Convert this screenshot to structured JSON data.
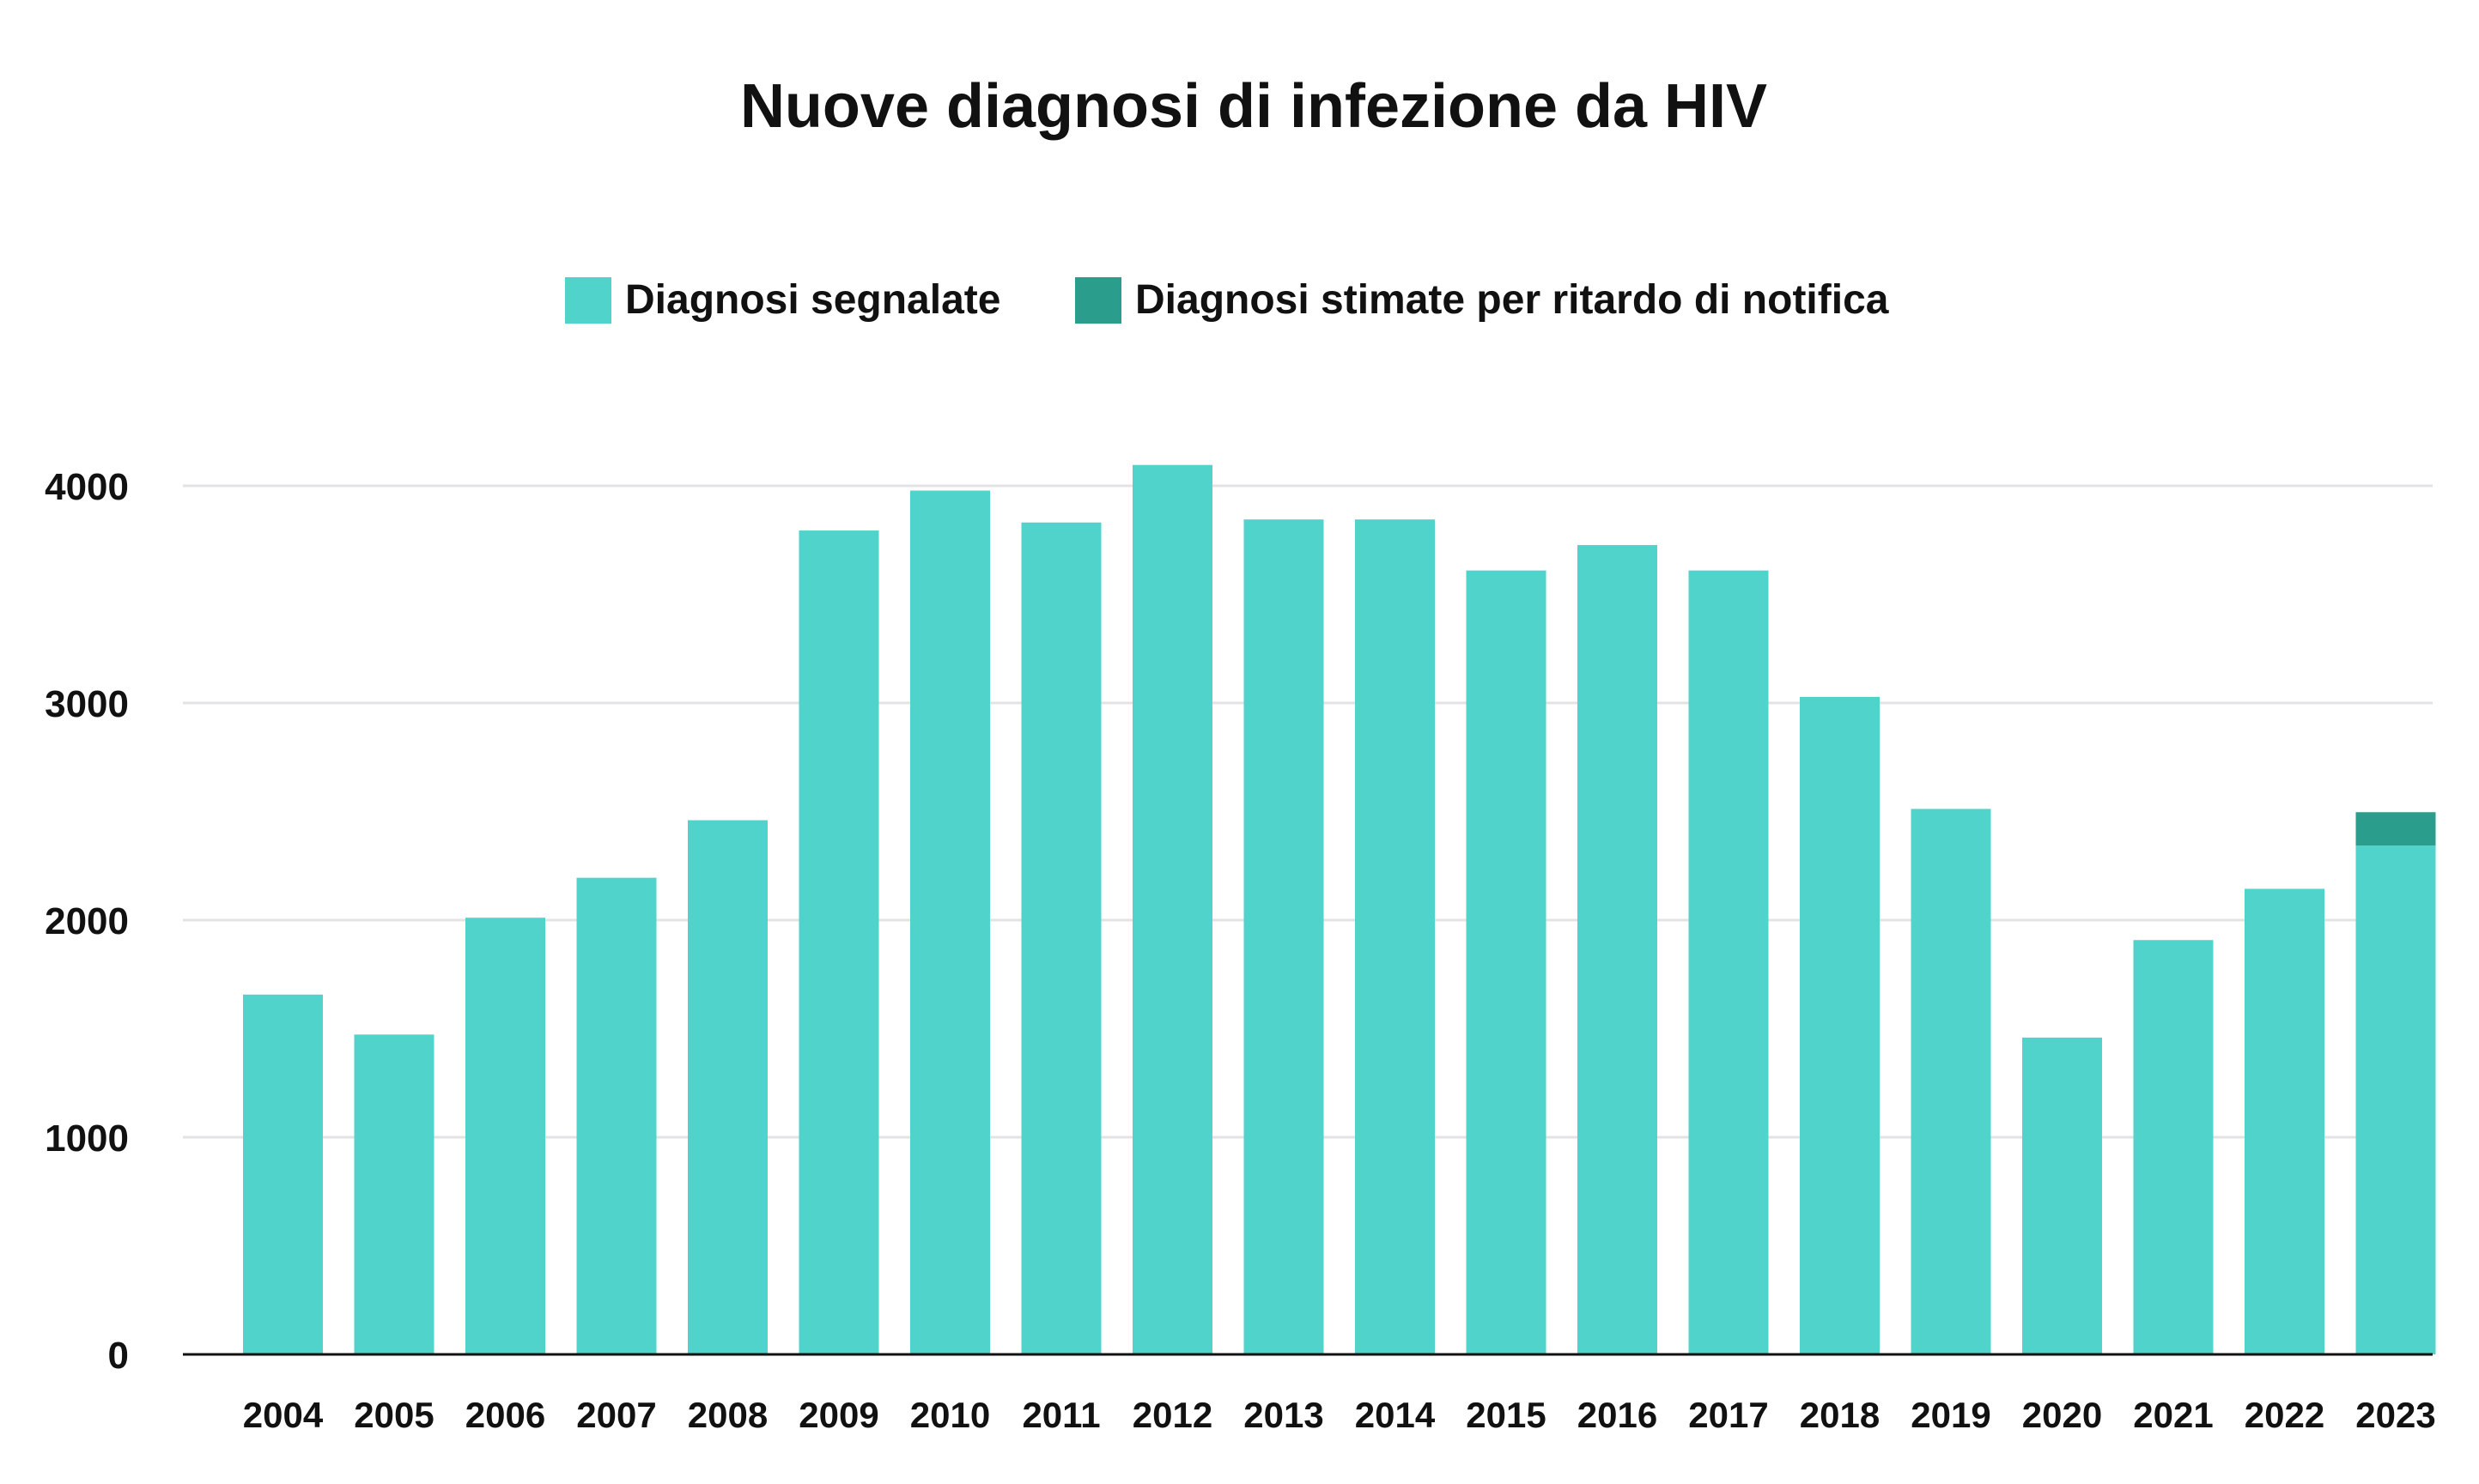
{
  "chart_data": {
    "type": "bar",
    "stacked": true,
    "title": "Nuove diagnosi di infezione da HIV",
    "xlabel": "",
    "ylabel": "",
    "ylim": [
      0,
      4000
    ],
    "yticks": [
      0,
      1000,
      2000,
      3000,
      4000
    ],
    "grid": true,
    "legend_position": "top",
    "categories": [
      "2004",
      "2005",
      "2006",
      "2007",
      "2008",
      "2009",
      "2010",
      "2011",
      "2012",
      "2013",
      "2014",
      "2015",
      "2016",
      "2017",
      "2018",
      "2019",
      "2020",
      "2021",
      "2022",
      "2023"
    ],
    "series": [
      {
        "name": "Diagnosi segnalate",
        "color": "#4fd3ca",
        "values": [
          1657,
          1473,
          2011,
          2195,
          2460,
          3794,
          3978,
          3831,
          4096,
          3845,
          3845,
          3610,
          3727,
          3610,
          3028,
          2512,
          1459,
          1908,
          2144,
          2343
        ]
      },
      {
        "name": "Diagnosi stimate per ritardo di notifica",
        "color": "#2a9d8d",
        "values": [
          0,
          0,
          0,
          0,
          0,
          0,
          0,
          0,
          0,
          0,
          0,
          0,
          0,
          0,
          0,
          0,
          0,
          0,
          0,
          154
        ]
      }
    ]
  }
}
